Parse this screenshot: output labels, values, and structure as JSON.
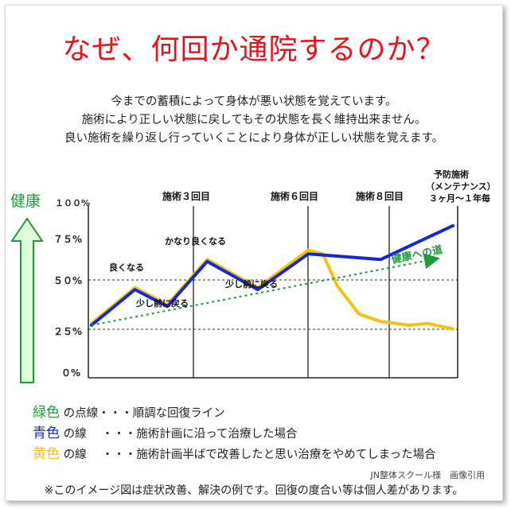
{
  "title": "なぜ、何回か通院するのか？",
  "intro_lines": [
    "今までの蓄積によって身体が悪い状態を覚えています。",
    "施術により正しい状態に戻してもその状態を長く維持出来ません。",
    "良い施術を繰り返し行っていくことにより身体が正しい状態を覚えます。"
  ],
  "chart": {
    "health_label": "健康",
    "y_ticks": [
      "１００%",
      "７５%",
      "５０%",
      "２５%",
      "０%"
    ],
    "session_labels": [
      "施術３回目",
      "施術６回目",
      "施術８回目"
    ],
    "maintenance_label_lines": [
      "予防施術",
      "（メンテナンス）",
      "３ヶ月～１年毎"
    ],
    "annotations": {
      "good": "良くなる",
      "slightly_back_1": "少し前に戻る",
      "much_better": "かなり良くなる",
      "slightly_back_2": "少し前に戻る",
      "road_to_health": "健康への道"
    },
    "colors": {
      "green": "#1f9a3a",
      "blue": "#1428d8",
      "yellow": "#f5c211",
      "arrow_fill": "#dcffd8"
    }
  },
  "chart_data": {
    "type": "line",
    "x_labels": [
      "施術３回目",
      "施術６回目",
      "施術８回目"
    ],
    "ylim": [
      0,
      100
    ],
    "y_ticks": [
      0,
      25,
      50,
      75,
      100
    ],
    "series": [
      {
        "color": "green",
        "style": "dotted",
        "points": [
          [
            0,
            28
          ],
          [
            10,
            66
          ]
        ]
      },
      {
        "color": "blue",
        "points": [
          [
            0,
            28
          ],
          [
            1.2,
            47
          ],
          [
            2.1,
            38
          ],
          [
            3.2,
            62
          ],
          [
            4.6,
            47
          ],
          [
            6,
            66
          ],
          [
            8,
            63
          ],
          [
            10,
            81
          ]
        ]
      },
      {
        "color": "yellow",
        "points": [
          [
            0,
            29
          ],
          [
            1.2,
            48
          ],
          [
            2.1,
            39
          ],
          [
            3.2,
            63
          ],
          [
            4.6,
            48
          ],
          [
            6,
            68
          ],
          [
            6.4,
            66
          ],
          [
            6.8,
            49
          ],
          [
            7.4,
            34
          ],
          [
            8,
            30
          ],
          [
            8.8,
            28
          ],
          [
            9.3,
            29
          ],
          [
            10,
            26
          ]
        ]
      }
    ]
  },
  "legend": [
    {
      "color_word": "緑色",
      "color": "#1f9a3a",
      "rest": "の点線・・・順調な回復ライン"
    },
    {
      "color_word": "青色",
      "color": "#1428d8",
      "rest": "の線　 ・・・施術計画に沿って治療した場合"
    },
    {
      "color_word": "黄色",
      "color": "#f5c211",
      "rest": "の線　 ・・・施術計画半ばで改善したと思い治療をやめてしまった場合"
    }
  ],
  "credit": "JN整体スクール様　画像引用",
  "note": "※このイメージ図は症状改善、解決の例です。回復の度合い等は個人差があります。"
}
